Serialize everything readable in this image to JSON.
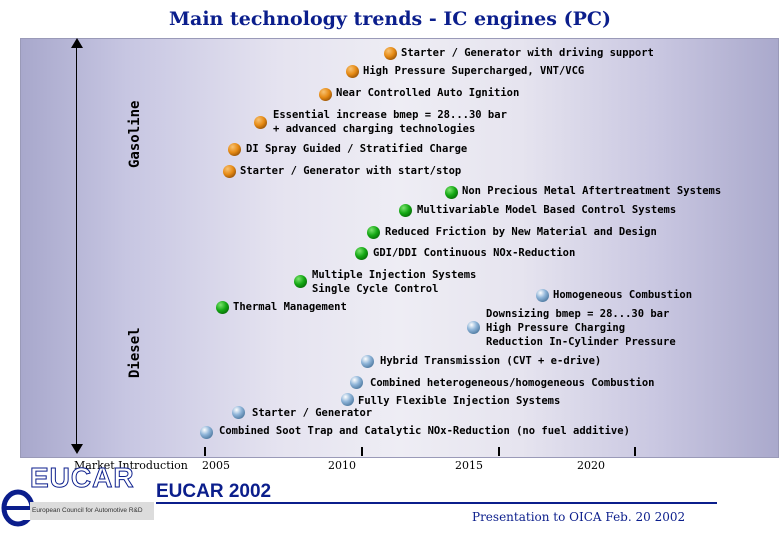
{
  "title": "Main technology trends - IC engines (PC)",
  "side_labels": {
    "gasoline": "Gasoline",
    "diesel": "Diesel"
  },
  "items": [
    {
      "label": "Starter / Generator with driving support",
      "color": "orange"
    },
    {
      "label": "High Pressure Supercharged, VNT/VCG",
      "color": "orange"
    },
    {
      "label": "Near Controlled Auto Ignition",
      "color": "orange"
    },
    {
      "label": "Essential increase bmep = 28...30 bar\n+ advanced charging technologies",
      "color": "orange"
    },
    {
      "label": "DI Spray Guided / Stratified Charge",
      "color": "orange"
    },
    {
      "label": "Starter / Generator with start/stop",
      "color": "orange"
    },
    {
      "label": "Non Precious Metal Aftertreatment Systems",
      "color": "green"
    },
    {
      "label": "Multivariable Model Based Control Systems",
      "color": "green"
    },
    {
      "label": "Reduced Friction by New Material and Design",
      "color": "green"
    },
    {
      "label": "GDI/DDI Continuous NOx-Reduction",
      "color": "green"
    },
    {
      "label": "Multiple Injection Systems\nSingle Cycle Control",
      "color": "green"
    },
    {
      "label": "Thermal Management",
      "color": "green"
    },
    {
      "label": "Homogeneous Combustion",
      "color": "blue"
    },
    {
      "label": "Downsizing bmep = 28...30 bar\nHigh Pressure Charging\nReduction In-Cylinder Pressure",
      "color": "blue"
    },
    {
      "label": "Hybrid Transmission (CVT + e-drive)",
      "color": "blue"
    },
    {
      "label": "Combined heterogeneous/homogeneous Combustion",
      "color": "blue"
    },
    {
      "label": "Fully Flexible Injection Systems",
      "color": "blue"
    },
    {
      "label": "Starter / Generator",
      "color": "blue"
    },
    {
      "label": "Combined Soot Trap and Catalytic NOx-Reduction (no fuel additive)",
      "color": "blue"
    }
  ],
  "timeline": {
    "market_label": "Market Introduction",
    "years": [
      "2005",
      "2010",
      "2015",
      "2020"
    ]
  },
  "footer": {
    "logo_text": "EUCAR",
    "logo_subtitle": "European Council for Automotive R&D",
    "eucar_year": "EUCAR 2002",
    "presentation": "Presentation to OICA Feb. 20 2002"
  }
}
